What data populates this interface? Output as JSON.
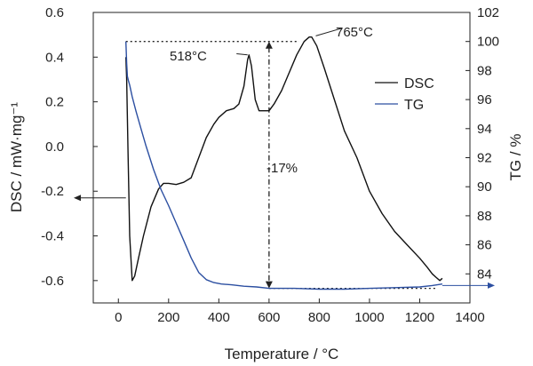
{
  "chart_data": {
    "type": "line",
    "xlabel": "Temperature / °C",
    "ylabel_left": "DSC / mW·mg⁻¹",
    "ylabel_right": "TG / %",
    "xlim": [
      -100,
      1400
    ],
    "ylim_left": [
      -0.7,
      0.6
    ],
    "ylim_right": [
      82,
      102
    ],
    "xticks": [
      "0",
      "200",
      "400",
      "600",
      "800",
      "1000",
      "1200",
      "1400"
    ],
    "yticks_left": [
      "-0.6",
      "-0.4",
      "-0.2",
      "0.0",
      "0.2",
      "0.4",
      "0.6"
    ],
    "yticks_right": [
      "84",
      "86",
      "88",
      "90",
      "92",
      "94",
      "96",
      "98",
      "100",
      "102"
    ],
    "legend_position": "right",
    "annotations": {
      "peak1": "518°C",
      "peak2": "765°C",
      "mass_loss": "-17%"
    },
    "series": [
      {
        "name": "DSC",
        "axis": "left",
        "color": "#111111",
        "x": [
          30,
          33,
          38,
          45,
          55,
          65,
          80,
          100,
          130,
          160,
          180,
          200,
          230,
          260,
          290,
          320,
          350,
          380,
          400,
          430,
          460,
          480,
          500,
          515,
          520,
          530,
          545,
          560,
          580,
          600,
          620,
          650,
          680,
          710,
          740,
          760,
          770,
          790,
          820,
          860,
          900,
          950,
          1000,
          1050,
          1100,
          1150,
          1200,
          1230,
          1250,
          1265,
          1280,
          1290
        ],
        "values": [
          0.4,
          0.3,
          0.0,
          -0.4,
          -0.6,
          -0.58,
          -0.5,
          -0.4,
          -0.27,
          -0.19,
          -0.165,
          -0.165,
          -0.17,
          -0.16,
          -0.14,
          -0.05,
          0.04,
          0.1,
          0.13,
          0.16,
          0.17,
          0.19,
          0.27,
          0.39,
          0.41,
          0.36,
          0.21,
          0.16,
          0.16,
          0.16,
          0.19,
          0.25,
          0.33,
          0.41,
          0.47,
          0.49,
          0.49,
          0.45,
          0.35,
          0.21,
          0.07,
          -0.05,
          -0.2,
          -0.3,
          -0.38,
          -0.44,
          -0.5,
          -0.54,
          -0.57,
          -0.585,
          -0.6,
          -0.59
        ]
      },
      {
        "name": "TG",
        "axis": "right",
        "color": "#2c4fa1",
        "x": [
          30,
          33,
          36,
          40,
          45,
          55,
          70,
          90,
          110,
          140,
          170,
          200,
          230,
          260,
          290,
          320,
          350,
          380,
          410,
          450,
          500,
          550,
          600,
          700,
          800,
          900,
          1000,
          1100,
          1200,
          1250,
          1290
        ],
        "values": [
          100,
          98.5,
          97.6,
          97.3,
          97,
          96.2,
          95.2,
          94,
          92.8,
          91.2,
          89.8,
          88.7,
          87.5,
          86.3,
          85.1,
          84.1,
          83.6,
          83.4,
          83.3,
          83.25,
          83.15,
          83.1,
          83.0,
          83.0,
          82.95,
          82.95,
          83.0,
          83.05,
          83.1,
          83.2,
          83.3
        ]
      }
    ]
  }
}
